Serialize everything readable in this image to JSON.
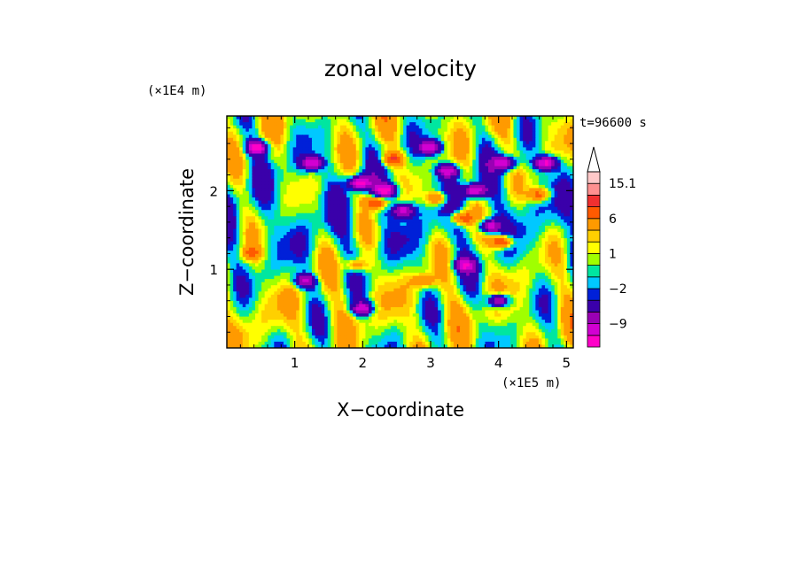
{
  "chart_data": {
    "type": "heatmap",
    "title": "zonal velocity",
    "xlabel": "X−coordinate",
    "ylabel": "Z−coordinate",
    "x_unit_label": "(×1E5 m)",
    "y_unit_label": "(×1E4 m)",
    "time_label": "t=96600 s",
    "xlim": [
      0,
      5.1
    ],
    "ylim": [
      0,
      2.95
    ],
    "x_ticks": [
      1,
      2,
      3,
      4,
      5
    ],
    "y_ticks": [
      1,
      2
    ],
    "colorbar": {
      "levels": [
        -15,
        -12,
        -9,
        -6,
        -3,
        -2,
        -1,
        0,
        1,
        2,
        3,
        6,
        9,
        12,
        15.1
      ],
      "colors": [
        "#ff00c8",
        "#d200d2",
        "#9a00b4",
        "#3a00aa",
        "#0020d8",
        "#00c8ff",
        "#00e6a0",
        "#a0ff00",
        "#ffff00",
        "#ffd000",
        "#ff9a00",
        "#ff5a00",
        "#f03030",
        "#ff9090",
        "#ffc8c8"
      ],
      "tick_labels": [
        {
          "label": "15.1",
          "value": 15.1
        },
        {
          "label": "6",
          "value": 6
        },
        {
          "label": "1",
          "value": 1
        },
        {
          "label": "−2",
          "value": -2
        },
        {
          "label": "−9",
          "value": -9
        }
      ],
      "extend_max": true
    }
  }
}
